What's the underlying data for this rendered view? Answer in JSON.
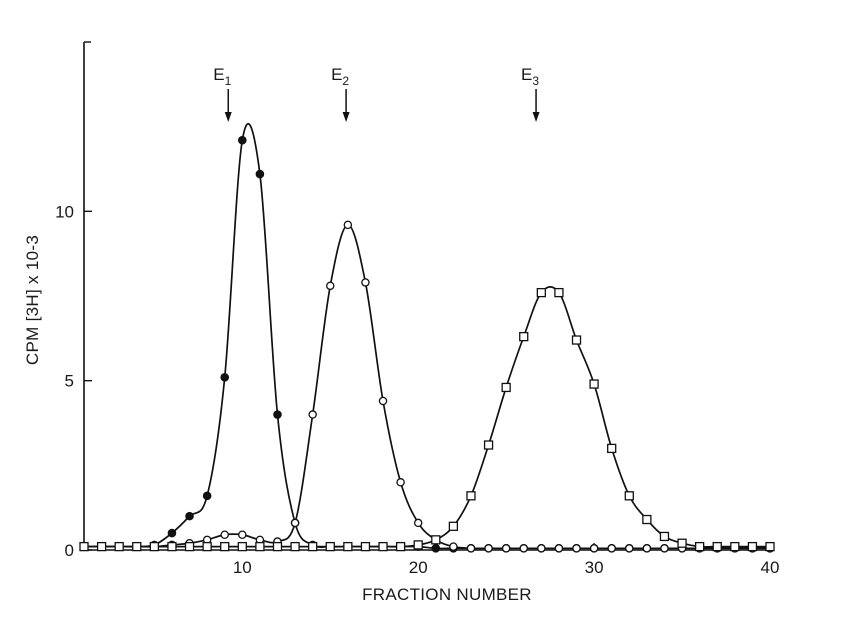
{
  "chart_data": {
    "type": "line",
    "title": "",
    "xlabel": "FRACTION NUMBER",
    "ylabel": "CPM [3H] x 10-3",
    "xlim": [
      1,
      40
    ],
    "ylim": [
      0,
      15
    ],
    "xticks": [
      10,
      20,
      30,
      40
    ],
    "yticks": [
      0,
      5,
      10
    ],
    "grid": false,
    "series": [
      {
        "marker": "filled-circle",
        "x": [
          1,
          2,
          3,
          4,
          5,
          6,
          7,
          8,
          9,
          10,
          11,
          12,
          13,
          14,
          15,
          16,
          17,
          18,
          19,
          20,
          21,
          22,
          23,
          24,
          25,
          26,
          27,
          28,
          29,
          30,
          31,
          32,
          33,
          34,
          35,
          36,
          37,
          38,
          39,
          40
        ],
        "y": [
          0.1,
          0.1,
          0.1,
          0.1,
          0.15,
          0.5,
          1.0,
          1.6,
          5.1,
          12.1,
          11.1,
          4.0,
          0.8,
          0.15,
          0.1,
          0.1,
          0.1,
          0.1,
          0.1,
          0.1,
          0.05,
          0.05,
          0.05,
          0.05,
          0.05,
          0.05,
          0.05,
          0.05,
          0.05,
          0.05,
          0.05,
          0.05,
          0.05,
          0.05,
          0.05,
          0.05,
          0.05,
          0.05,
          0.05,
          0.05
        ]
      },
      {
        "marker": "open-circle",
        "x": [
          1,
          2,
          3,
          4,
          5,
          6,
          7,
          8,
          9,
          10,
          11,
          12,
          13,
          14,
          15,
          16,
          17,
          18,
          19,
          20,
          21,
          22,
          23,
          24,
          25,
          26,
          27,
          28,
          29,
          30,
          31,
          32,
          33,
          34,
          35,
          36,
          37,
          38,
          39,
          40
        ],
        "y": [
          0.1,
          0.1,
          0.1,
          0.1,
          0.1,
          0.15,
          0.2,
          0.3,
          0.45,
          0.45,
          0.3,
          0.25,
          0.8,
          4.0,
          7.8,
          9.6,
          7.9,
          4.4,
          2.0,
          0.8,
          0.3,
          0.1,
          0.05,
          0.05,
          0.05,
          0.05,
          0.05,
          0.05,
          0.05,
          0.05,
          0.05,
          0.05,
          0.05,
          0.05,
          0.05,
          0.05,
          0.05,
          0.05,
          0.05,
          0.05
        ]
      },
      {
        "marker": "open-square",
        "x": [
          1,
          2,
          3,
          4,
          5,
          6,
          7,
          8,
          9,
          10,
          11,
          12,
          13,
          14,
          15,
          16,
          17,
          18,
          19,
          20,
          21,
          22,
          23,
          24,
          25,
          26,
          27,
          28,
          29,
          30,
          31,
          32,
          33,
          34,
          35,
          36,
          37,
          38,
          39,
          40
        ],
        "y": [
          0.1,
          0.1,
          0.1,
          0.1,
          0.1,
          0.1,
          0.1,
          0.1,
          0.1,
          0.1,
          0.1,
          0.1,
          0.1,
          0.1,
          0.1,
          0.1,
          0.1,
          0.1,
          0.1,
          0.15,
          0.3,
          0.7,
          1.6,
          3.1,
          4.8,
          6.3,
          7.6,
          7.6,
          6.2,
          4.9,
          3.0,
          1.6,
          0.9,
          0.4,
          0.2,
          0.1,
          0.1,
          0.1,
          0.1,
          0.1
        ]
      }
    ],
    "annotations": [
      {
        "label": "E",
        "sub": "1",
        "x": 9.2
      },
      {
        "label": "E",
        "sub": "2",
        "x": 15.9
      },
      {
        "label": "E",
        "sub": "3",
        "x": 26.7
      }
    ]
  }
}
